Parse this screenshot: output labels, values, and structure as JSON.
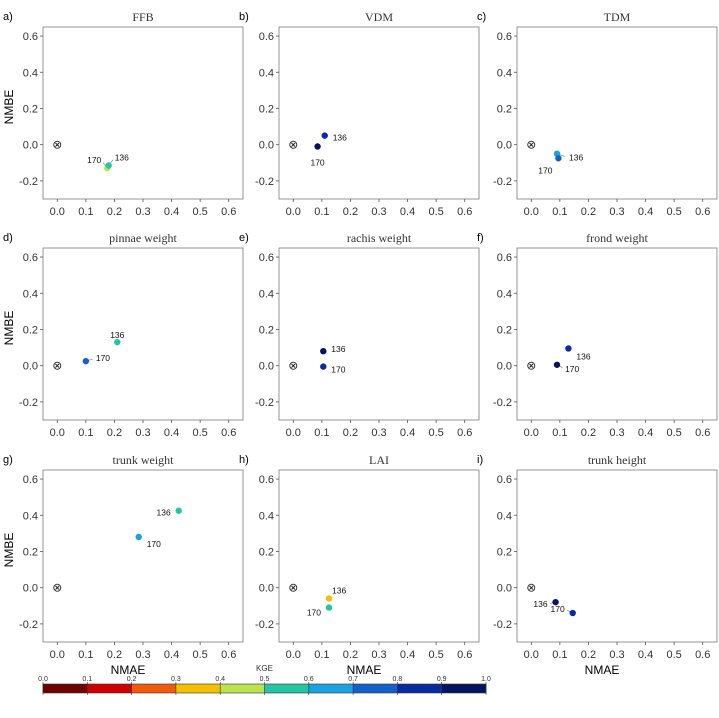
{
  "figure": {
    "y_axis_label": "NMBE",
    "x_axis_label": "NMAE",
    "colorbar_title": "KGE",
    "reference_marker": "⊗",
    "colorbar_ticks": [
      "0.0",
      "0.1",
      "0.2",
      "0.3",
      "0.4",
      "0.5",
      "0.6",
      "0.7",
      "0.8",
      "0.9",
      "1.0"
    ],
    "colorbar_colors": [
      "#6e0000",
      "#cf0000",
      "#f05a0a",
      "#f5c000",
      "#b9e34f",
      "#22c6a5",
      "#1aa2e0",
      "#1560c8",
      "#0a2aa0",
      "#051460"
    ]
  },
  "chart_data": [
    {
      "type": "scatter",
      "letter": "a)",
      "title": "FFB",
      "xlim": [
        -0.05,
        0.65
      ],
      "ylim": [
        -0.3,
        0.65
      ],
      "xticks": [
        "0.0",
        "0.1",
        "0.2",
        "0.3",
        "0.4",
        "0.5",
        "0.6"
      ],
      "yticks": [
        "-0.2",
        "0.0",
        "0.2",
        "0.4",
        "0.6"
      ],
      "reference": [
        0,
        0
      ],
      "points": [
        {
          "label": "170",
          "x": 0.175,
          "y": -0.13,
          "color": "#b9e34f"
        },
        {
          "label": "136",
          "x": 0.18,
          "y": -0.115,
          "color": "#22c6a5"
        }
      ]
    },
    {
      "type": "scatter",
      "letter": "b)",
      "title": "VDM",
      "xlim": [
        -0.05,
        0.65
      ],
      "ylim": [
        -0.3,
        0.65
      ],
      "xticks": [
        "0.0",
        "0.1",
        "0.2",
        "0.3",
        "0.4",
        "0.5",
        "0.6"
      ],
      "yticks": [
        "-0.2",
        "0.0",
        "0.2",
        "0.4",
        "0.6"
      ],
      "reference": [
        0,
        0
      ],
      "points": [
        {
          "label": "136",
          "x": 0.11,
          "y": 0.05,
          "color": "#0a2aa0"
        },
        {
          "label": "170",
          "x": 0.085,
          "y": -0.01,
          "color": "#051460"
        }
      ]
    },
    {
      "type": "scatter",
      "letter": "c)",
      "title": "TDM",
      "xlim": [
        -0.05,
        0.65
      ],
      "ylim": [
        -0.3,
        0.65
      ],
      "xticks": [
        "0.0",
        "0.1",
        "0.2",
        "0.3",
        "0.4",
        "0.5",
        "0.6"
      ],
      "yticks": [
        "-0.2",
        "0.0",
        "0.2",
        "0.4",
        "0.6"
      ],
      "reference": [
        0,
        0
      ],
      "points": [
        {
          "label": "136",
          "x": 0.09,
          "y": -0.05,
          "color": "#1aa2e0"
        },
        {
          "label": "170",
          "x": 0.095,
          "y": -0.075,
          "color": "#1560c8"
        }
      ]
    },
    {
      "type": "scatter",
      "letter": "d)",
      "title": "pinnae weight",
      "xlim": [
        -0.05,
        0.65
      ],
      "ylim": [
        -0.3,
        0.65
      ],
      "xticks": [
        "0.0",
        "0.1",
        "0.2",
        "0.3",
        "0.4",
        "0.5",
        "0.6"
      ],
      "yticks": [
        "-0.2",
        "0.0",
        "0.2",
        "0.4",
        "0.6"
      ],
      "reference": [
        0,
        0
      ],
      "points": [
        {
          "label": "136",
          "x": 0.21,
          "y": 0.13,
          "color": "#22c6a5"
        },
        {
          "label": "170",
          "x": 0.1,
          "y": 0.025,
          "color": "#1560c8"
        }
      ]
    },
    {
      "type": "scatter",
      "letter": "e)",
      "title": "rachis weight",
      "xlim": [
        -0.05,
        0.65
      ],
      "ylim": [
        -0.3,
        0.65
      ],
      "xticks": [
        "0.0",
        "0.1",
        "0.2",
        "0.3",
        "0.4",
        "0.5",
        "0.6"
      ],
      "yticks": [
        "-0.2",
        "0.0",
        "0.2",
        "0.4",
        "0.6"
      ],
      "reference": [
        0,
        0
      ],
      "points": [
        {
          "label": "136",
          "x": 0.105,
          "y": 0.08,
          "color": "#051460"
        },
        {
          "label": "170",
          "x": 0.105,
          "y": -0.005,
          "color": "#0a2aa0"
        }
      ]
    },
    {
      "type": "scatter",
      "letter": "f)",
      "title": "frond weight",
      "xlim": [
        -0.05,
        0.65
      ],
      "ylim": [
        -0.3,
        0.65
      ],
      "xticks": [
        "0.0",
        "0.1",
        "0.2",
        "0.3",
        "0.4",
        "0.5",
        "0.6"
      ],
      "yticks": [
        "-0.2",
        "0.0",
        "0.2",
        "0.4",
        "0.6"
      ],
      "reference": [
        0,
        0
      ],
      "points": [
        {
          "label": "136",
          "x": 0.13,
          "y": 0.095,
          "color": "#0a2aa0"
        },
        {
          "label": "170",
          "x": 0.09,
          "y": 0.005,
          "color": "#051460"
        }
      ]
    },
    {
      "type": "scatter",
      "letter": "g)",
      "title": "trunk weight",
      "xlim": [
        -0.05,
        0.65
      ],
      "ylim": [
        -0.3,
        0.65
      ],
      "xticks": [
        "0.0",
        "0.1",
        "0.2",
        "0.3",
        "0.4",
        "0.5",
        "0.6"
      ],
      "yticks": [
        "-0.2",
        "0.0",
        "0.2",
        "0.4",
        "0.6"
      ],
      "reference": [
        0,
        0
      ],
      "points": [
        {
          "label": "136",
          "x": 0.425,
          "y": 0.425,
          "color": "#22c6a5"
        },
        {
          "label": "170",
          "x": 0.285,
          "y": 0.28,
          "color": "#1aa2e0"
        }
      ]
    },
    {
      "type": "scatter",
      "letter": "h)",
      "title": "LAI",
      "xlim": [
        -0.05,
        0.65
      ],
      "ylim": [
        -0.3,
        0.65
      ],
      "xticks": [
        "0.0",
        "0.1",
        "0.2",
        "0.3",
        "0.4",
        "0.5",
        "0.6"
      ],
      "yticks": [
        "-0.2",
        "0.0",
        "0.2",
        "0.4",
        "0.6"
      ],
      "reference": [
        0,
        0
      ],
      "points": [
        {
          "label": "136",
          "x": 0.125,
          "y": -0.06,
          "color": "#f5c000"
        },
        {
          "label": "170",
          "x": 0.125,
          "y": -0.11,
          "color": "#22c6a5"
        }
      ]
    },
    {
      "type": "scatter",
      "letter": "i)",
      "title": "trunk height",
      "xlim": [
        -0.05,
        0.65
      ],
      "ylim": [
        -0.3,
        0.65
      ],
      "xticks": [
        "0.0",
        "0.1",
        "0.2",
        "0.3",
        "0.4",
        "0.5",
        "0.6"
      ],
      "yticks": [
        "-0.2",
        "0.0",
        "0.2",
        "0.4",
        "0.6"
      ],
      "reference": [
        0,
        0
      ],
      "points": [
        {
          "label": "136",
          "x": 0.085,
          "y": -0.08,
          "color": "#051460"
        },
        {
          "label": "170",
          "x": 0.145,
          "y": -0.14,
          "color": "#0a2aa0"
        }
      ]
    }
  ]
}
